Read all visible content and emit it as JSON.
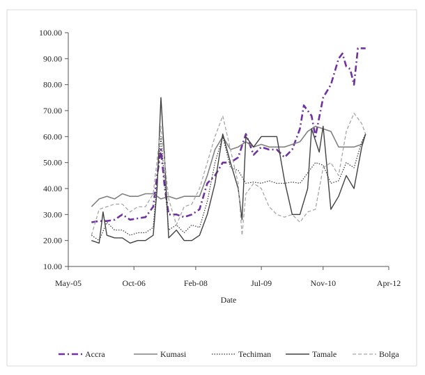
{
  "chart_data": {
    "type": "line",
    "title": "",
    "xlabel": "Date",
    "ylabel": "",
    "x_ticks": [
      "May-05",
      "Oct-06",
      "Feb-08",
      "Jul-09",
      "Nov-10",
      "Apr-12"
    ],
    "xlim": [
      "May-05",
      "Apr-12"
    ],
    "y_ticks": [
      "10.00",
      "20.00",
      "30.00",
      "40.00",
      "50.00",
      "60.00",
      "70.00",
      "80.00",
      "90.00",
      "100.00"
    ],
    "ylim": [
      10,
      100
    ],
    "grid": false,
    "legend_position": "bottom",
    "series": [
      {
        "name": "Accra",
        "color": "#7030a0",
        "style": "dashdot",
        "points": [
          [
            "2005-11",
            27
          ],
          [
            "2006-01",
            27.5
          ],
          [
            "2006-03",
            27.5
          ],
          [
            "2006-05",
            28
          ],
          [
            "2006-07",
            30
          ],
          [
            "2006-09",
            28
          ],
          [
            "2006-11",
            28.5
          ],
          [
            "2007-01",
            29
          ],
          [
            "2007-03",
            33
          ],
          [
            "2007-04",
            45
          ],
          [
            "2007-05",
            55
          ],
          [
            "2007-06",
            40
          ],
          [
            "2007-07",
            30
          ],
          [
            "2007-09",
            30
          ],
          [
            "2007-11",
            29
          ],
          [
            "2008-01",
            30
          ],
          [
            "2008-03",
            32
          ],
          [
            "2008-05",
            42
          ],
          [
            "2008-07",
            45
          ],
          [
            "2008-09",
            50
          ],
          [
            "2008-11",
            50
          ],
          [
            "2009-01",
            52
          ],
          [
            "2009-03",
            61
          ],
          [
            "2009-05",
            53
          ],
          [
            "2009-07",
            56
          ],
          [
            "2009-09",
            55
          ],
          [
            "2009-11",
            55
          ],
          [
            "2010-01",
            52
          ],
          [
            "2010-03",
            55
          ],
          [
            "2010-05",
            63
          ],
          [
            "2010-06",
            72
          ],
          [
            "2010-08",
            68
          ],
          [
            "2010-09",
            60
          ],
          [
            "2010-11",
            75
          ],
          [
            "2011-01",
            80
          ],
          [
            "2011-03",
            90
          ],
          [
            "2011-04",
            92
          ],
          [
            "2011-05",
            87
          ],
          [
            "2011-06",
            86
          ],
          [
            "2011-07",
            80
          ],
          [
            "2011-08",
            94
          ],
          [
            "2011-10",
            94
          ]
        ]
      },
      {
        "name": "Kumasi",
        "color": "#808080",
        "style": "solid",
        "points": [
          [
            "2005-11",
            33
          ],
          [
            "2006-01",
            36
          ],
          [
            "2006-03",
            37
          ],
          [
            "2006-05",
            36
          ],
          [
            "2006-07",
            38
          ],
          [
            "2006-09",
            37
          ],
          [
            "2006-11",
            37
          ],
          [
            "2007-01",
            38
          ],
          [
            "2007-03",
            38
          ],
          [
            "2007-05",
            36
          ],
          [
            "2007-07",
            37
          ],
          [
            "2007-09",
            36
          ],
          [
            "2007-11",
            37
          ],
          [
            "2008-01",
            37
          ],
          [
            "2008-03",
            37
          ],
          [
            "2008-05",
            45
          ],
          [
            "2008-07",
            55
          ],
          [
            "2008-09",
            60
          ],
          [
            "2008-11",
            55
          ],
          [
            "2009-01",
            56
          ],
          [
            "2009-03",
            58
          ],
          [
            "2009-05",
            56
          ],
          [
            "2009-07",
            57
          ],
          [
            "2009-09",
            56
          ],
          [
            "2009-11",
            56
          ],
          [
            "2010-01",
            56
          ],
          [
            "2010-03",
            57
          ],
          [
            "2010-05",
            58
          ],
          [
            "2010-07",
            62
          ],
          [
            "2010-09",
            64
          ],
          [
            "2010-11",
            63
          ],
          [
            "2011-01",
            62
          ],
          [
            "2011-03",
            56
          ],
          [
            "2011-05",
            56
          ],
          [
            "2011-07",
            56
          ],
          [
            "2011-09",
            57
          ],
          [
            "2011-10",
            61
          ]
        ]
      },
      {
        "name": "Techiman",
        "color": "#333333",
        "style": "dotted",
        "points": [
          [
            "2005-11",
            22
          ],
          [
            "2006-01",
            20
          ],
          [
            "2006-03",
            27
          ],
          [
            "2006-05",
            24
          ],
          [
            "2006-07",
            24
          ],
          [
            "2006-09",
            22
          ],
          [
            "2006-11",
            23
          ],
          [
            "2007-01",
            23
          ],
          [
            "2007-03",
            25
          ],
          [
            "2007-05",
            60
          ],
          [
            "2007-07",
            24
          ],
          [
            "2007-09",
            26
          ],
          [
            "2007-11",
            23
          ],
          [
            "2008-01",
            26
          ],
          [
            "2008-03",
            25
          ],
          [
            "2008-05",
            35
          ],
          [
            "2008-07",
            50
          ],
          [
            "2008-09",
            60
          ],
          [
            "2008-11",
            48
          ],
          [
            "2009-01",
            47
          ],
          [
            "2009-03",
            42
          ],
          [
            "2009-05",
            42.5
          ],
          [
            "2009-07",
            42
          ],
          [
            "2009-09",
            43
          ],
          [
            "2009-11",
            42
          ],
          [
            "2010-01",
            42
          ],
          [
            "2010-03",
            42.5
          ],
          [
            "2010-05",
            42
          ],
          [
            "2010-07",
            46
          ],
          [
            "2010-09",
            50
          ],
          [
            "2010-11",
            49
          ],
          [
            "2011-01",
            42
          ],
          [
            "2011-03",
            43
          ],
          [
            "2011-05",
            50
          ],
          [
            "2011-07",
            48
          ],
          [
            "2011-09",
            58
          ],
          [
            "2011-10",
            61
          ]
        ]
      },
      {
        "name": "Tamale",
        "color": "#404040",
        "style": "solid",
        "points": [
          [
            "2005-11",
            20
          ],
          [
            "2006-01",
            19
          ],
          [
            "2006-02",
            31
          ],
          [
            "2006-03",
            22
          ],
          [
            "2006-05",
            21
          ],
          [
            "2006-07",
            21
          ],
          [
            "2006-09",
            19
          ],
          [
            "2006-11",
            20
          ],
          [
            "2007-01",
            20
          ],
          [
            "2007-03",
            22
          ],
          [
            "2007-04",
            40
          ],
          [
            "2007-05",
            75
          ],
          [
            "2007-06",
            50
          ],
          [
            "2007-07",
            21
          ],
          [
            "2007-09",
            24
          ],
          [
            "2007-11",
            20
          ],
          [
            "2008-01",
            20
          ],
          [
            "2008-03",
            22
          ],
          [
            "2008-05",
            30
          ],
          [
            "2008-07",
            42
          ],
          [
            "2008-09",
            61
          ],
          [
            "2008-11",
            50
          ],
          [
            "2009-01",
            40
          ],
          [
            "2009-02",
            28
          ],
          [
            "2009-03",
            60
          ],
          [
            "2009-05",
            56
          ],
          [
            "2009-07",
            60
          ],
          [
            "2009-09",
            60
          ],
          [
            "2009-11",
            60
          ],
          [
            "2010-01",
            43
          ],
          [
            "2010-03",
            30
          ],
          [
            "2010-05",
            30
          ],
          [
            "2010-07",
            40
          ],
          [
            "2010-08",
            63
          ],
          [
            "2010-10",
            54
          ],
          [
            "2010-11",
            64
          ],
          [
            "2011-01",
            32
          ],
          [
            "2011-03",
            37
          ],
          [
            "2011-05",
            45
          ],
          [
            "2011-07",
            40
          ],
          [
            "2011-09",
            56
          ],
          [
            "2011-10",
            61
          ]
        ]
      },
      {
        "name": "Bolga",
        "color": "#a6a6a6",
        "style": "dashed",
        "points": [
          [
            "2005-11",
            22
          ],
          [
            "2006-01",
            32
          ],
          [
            "2006-03",
            33
          ],
          [
            "2006-05",
            34
          ],
          [
            "2006-07",
            34
          ],
          [
            "2006-09",
            31
          ],
          [
            "2006-11",
            33
          ],
          [
            "2007-01",
            33
          ],
          [
            "2007-03",
            38
          ],
          [
            "2007-05",
            64
          ],
          [
            "2007-07",
            36
          ],
          [
            "2007-09",
            26
          ],
          [
            "2007-11",
            33
          ],
          [
            "2008-01",
            34
          ],
          [
            "2008-03",
            40
          ],
          [
            "2008-05",
            50
          ],
          [
            "2008-07",
            60
          ],
          [
            "2008-09",
            68
          ],
          [
            "2008-11",
            55
          ],
          [
            "2009-01",
            42
          ],
          [
            "2009-02",
            22
          ],
          [
            "2009-03",
            38
          ],
          [
            "2009-05",
            42
          ],
          [
            "2009-07",
            40
          ],
          [
            "2009-09",
            33
          ],
          [
            "2009-11",
            30
          ],
          [
            "2010-01",
            29
          ],
          [
            "2010-03",
            30
          ],
          [
            "2010-05",
            27
          ],
          [
            "2010-07",
            31
          ],
          [
            "2010-09",
            32
          ],
          [
            "2010-11",
            48
          ],
          [
            "2011-01",
            50
          ],
          [
            "2011-03",
            45
          ],
          [
            "2011-05",
            62
          ],
          [
            "2011-07",
            69
          ],
          [
            "2011-09",
            65
          ],
          [
            "2011-10",
            61
          ]
        ]
      }
    ]
  }
}
